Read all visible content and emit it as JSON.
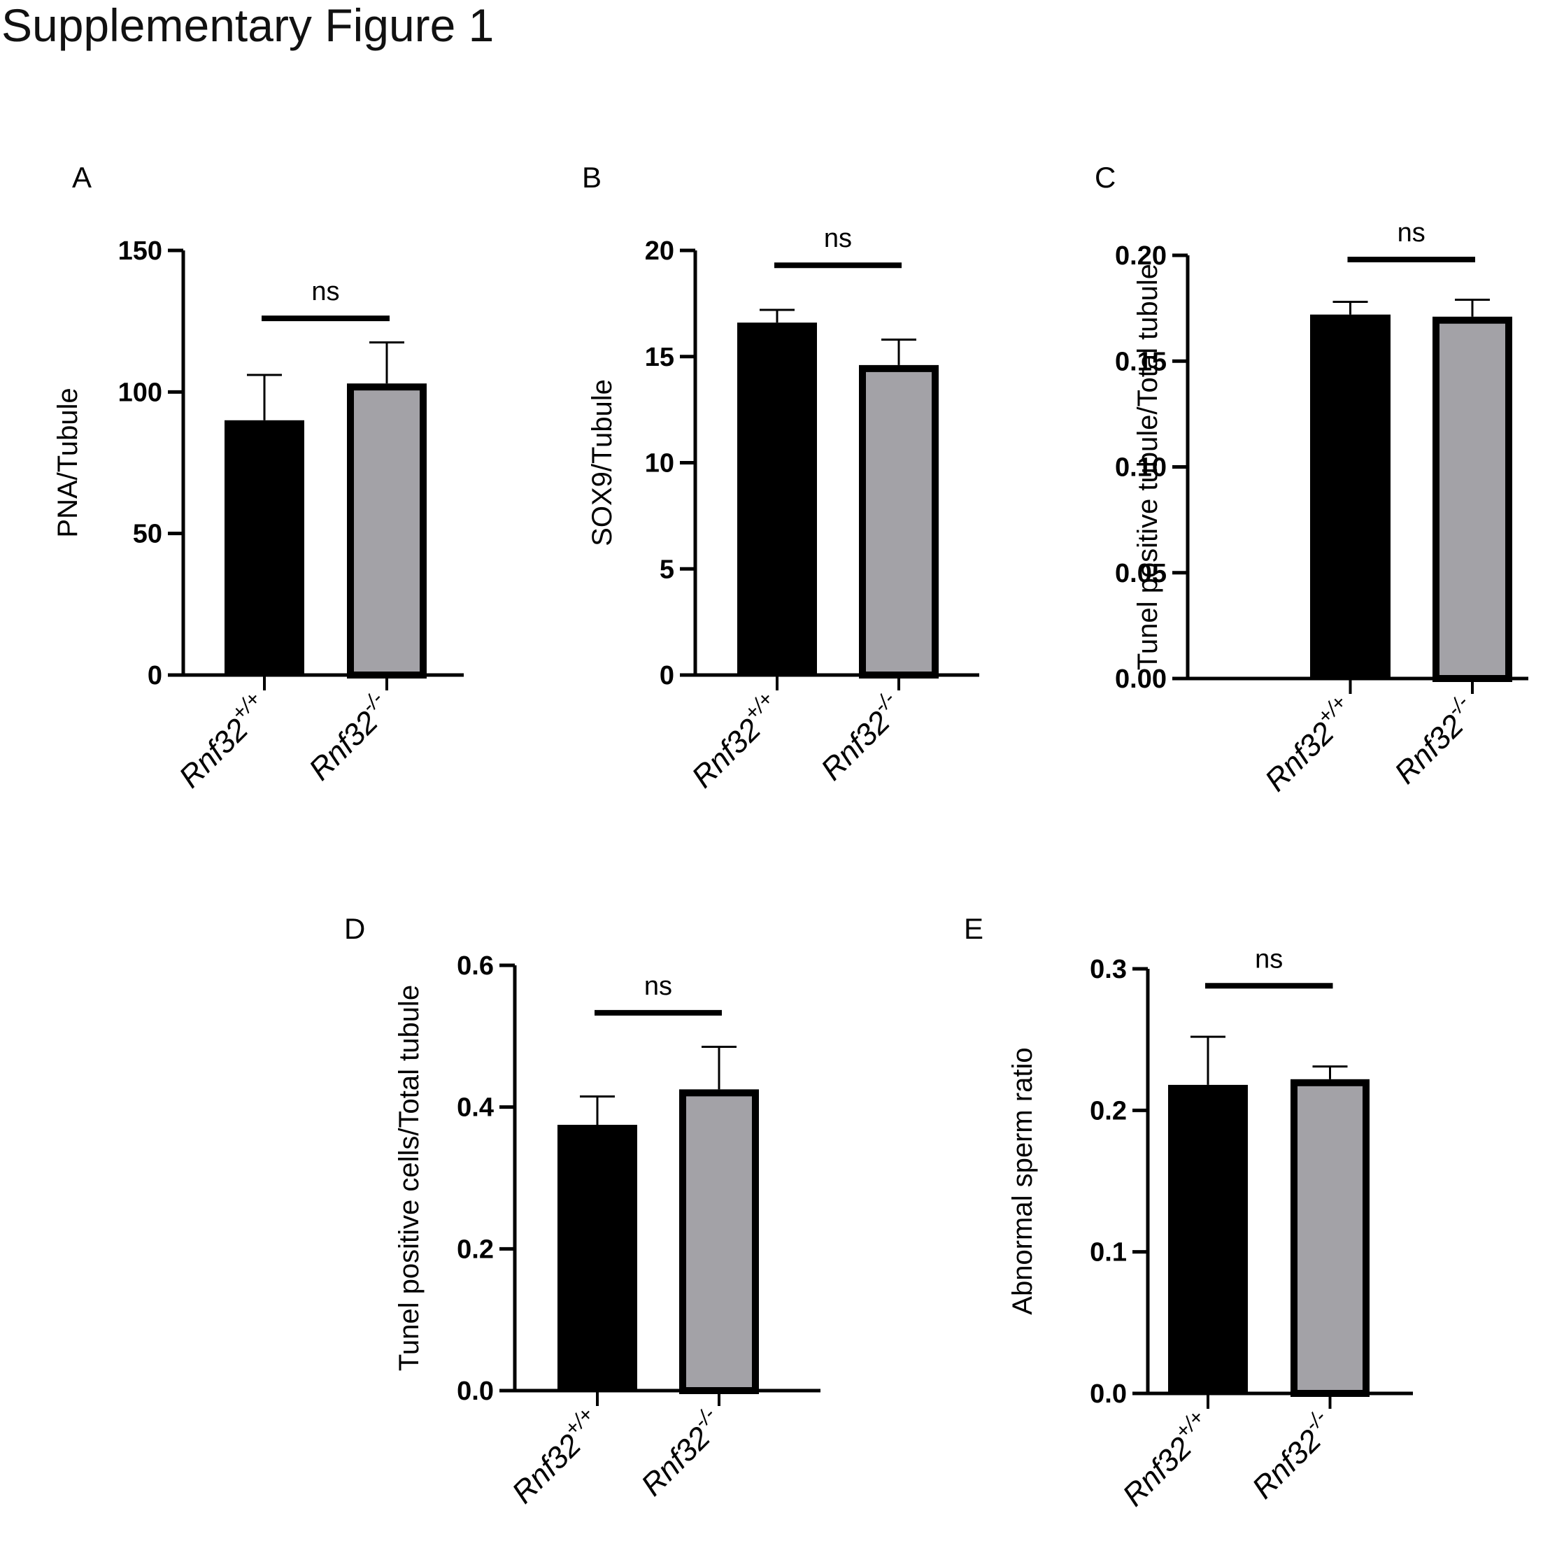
{
  "figure_title": "Supplementary Figure 1",
  "colors": {
    "wildtype": "#000000",
    "knockout": "#a3a2a7",
    "outline": "#000000"
  },
  "chart_data": [
    {
      "panel": "A",
      "type": "bar",
      "categories": [
        {
          "base": "Rnf32",
          "sup": "+/+"
        },
        {
          "base": "Rnf32",
          "sup": "-/-"
        }
      ],
      "values": [
        90,
        103
      ],
      "error_upper": [
        106,
        117.5
      ],
      "ylabel": "PNA/Tubule",
      "ylim": [
        0,
        150
      ],
      "yticks": [
        0,
        50,
        100,
        150
      ],
      "ytick_labels": [
        "0",
        "50",
        "100",
        "150"
      ],
      "significance": "ns",
      "significance_y": 126
    },
    {
      "panel": "B",
      "type": "bar",
      "categories": [
        {
          "base": "Rnf32",
          "sup": "+/+"
        },
        {
          "base": "Rnf32",
          "sup": "-/-"
        }
      ],
      "values": [
        16.6,
        14.6
      ],
      "error_upper": [
        17.2,
        15.8
      ],
      "ylabel": "SOX9/Tubule",
      "ylim": [
        0,
        20
      ],
      "yticks": [
        0,
        5,
        10,
        15,
        20
      ],
      "ytick_labels": [
        "0",
        "5",
        "10",
        "15",
        "20"
      ],
      "significance": "ns",
      "significance_y": 19.3
    },
    {
      "panel": "C",
      "type": "bar",
      "categories": [
        {
          "base": "Rnf32",
          "sup": "+/+"
        },
        {
          "base": "Rnf32",
          "sup": "-/-"
        }
      ],
      "values": [
        0.172,
        0.171
      ],
      "error_upper": [
        0.178,
        0.179
      ],
      "ylabel": "Tunel positive tubule/Total tubule",
      "ylim": [
        0,
        0.2
      ],
      "yticks": [
        0,
        0.05,
        0.1,
        0.15,
        0.2
      ],
      "ytick_labels": [
        "0.00",
        "0.05",
        "0.10",
        "0.15",
        "0.20"
      ],
      "significance": "ns",
      "significance_y": 0.198
    },
    {
      "panel": "D",
      "type": "bar",
      "categories": [
        {
          "base": "Rnf32",
          "sup": "+/+"
        },
        {
          "base": "Rnf32",
          "sup": "-/-"
        }
      ],
      "values": [
        0.375,
        0.425
      ],
      "error_upper": [
        0.415,
        0.485
      ],
      "ylabel": "Tunel positive cells/Total tubule",
      "ylim": [
        0,
        0.6
      ],
      "yticks": [
        0,
        0.2,
        0.4,
        0.6
      ],
      "ytick_labels": [
        "0.0",
        "0.2",
        "0.4",
        "0.6"
      ],
      "significance": "ns",
      "significance_y": 0.533
    },
    {
      "panel": "E",
      "type": "bar",
      "categories": [
        {
          "base": "Rnf32",
          "sup": "+/+"
        },
        {
          "base": "Rnf32",
          "sup": "-/-"
        }
      ],
      "values": [
        0.218,
        0.222
      ],
      "error_upper": [
        0.252,
        0.231
      ],
      "ylabel": "Abnormal sperm ratio",
      "ylim": [
        0,
        0.3
      ],
      "yticks": [
        0,
        0.1,
        0.2,
        0.3
      ],
      "ytick_labels": [
        "0.0",
        "0.1",
        "0.2",
        "0.3"
      ],
      "significance": "ns",
      "significance_y": 0.288
    }
  ]
}
